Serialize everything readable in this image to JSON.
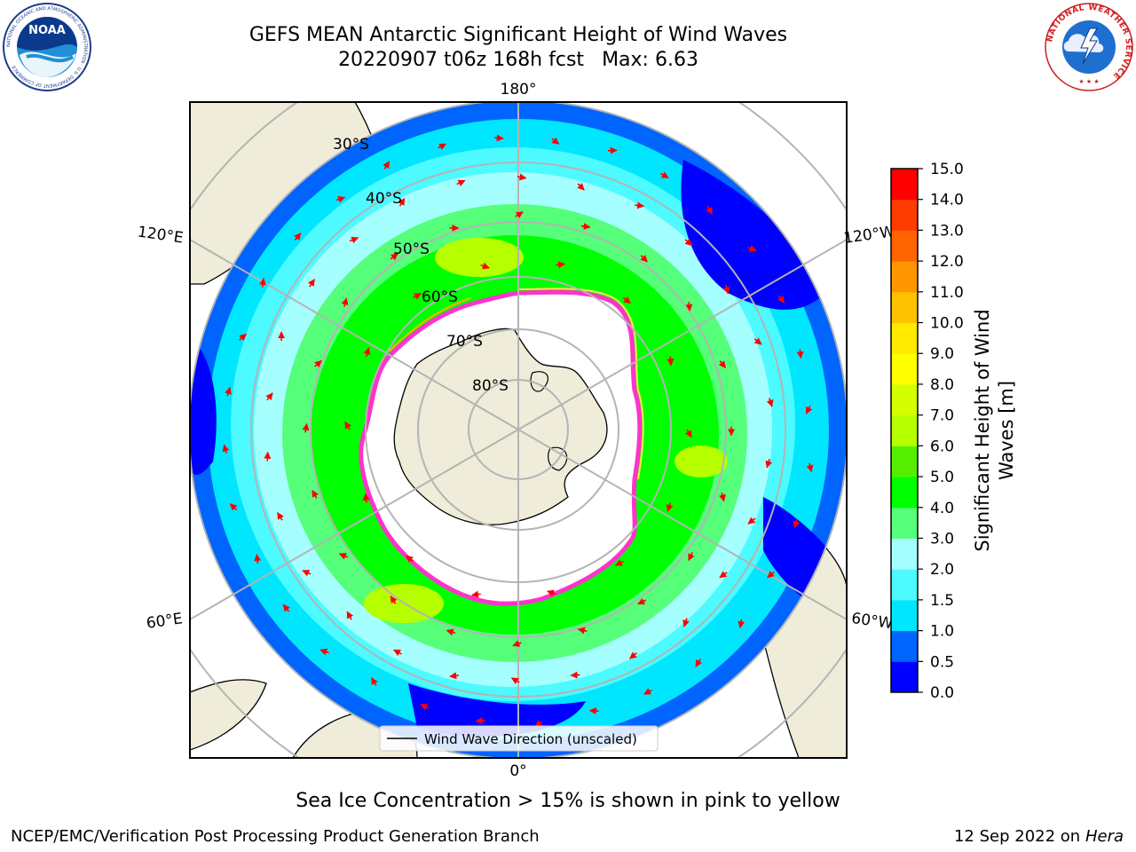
{
  "header": {
    "title_line1": "GEFS MEAN Antarctic Significant Height of Wind Waves",
    "run": "20220907 t06z 168h fcst",
    "max_label": "Max: 6.63"
  },
  "logos": {
    "left": {
      "icon": "noaa-logo-icon",
      "text": "NOAA",
      "ring_text": "NATIONAL OCEANIC AND ATMOSPHERIC ADMINISTRATION · U.S. DEPARTMENT OF COMMERCE"
    },
    "right": {
      "icon": "nws-logo-icon",
      "ring_text": "NATIONAL WEATHER SERVICE"
    }
  },
  "map": {
    "projection": "south-polar-stereographic",
    "longitude_labels": [
      "180°",
      "120°E",
      "120°W",
      "60°E",
      "60°W",
      "0°"
    ],
    "latitude_labels": [
      "30°S",
      "40°S",
      "50°S",
      "60°S",
      "70°S",
      "80°S"
    ],
    "legend_label": "Wind Wave Direction (unscaled)",
    "arrow_color": "#ff0000",
    "land_color": "#efecd9",
    "ice_edge_colors": [
      "#ff33cc",
      "#ffb000",
      "#ffe24a"
    ]
  },
  "colorbar": {
    "label_line1": "Significant Height of Wind",
    "label_line2": "Waves [m]",
    "ticks": [
      "0.0",
      "0.5",
      "1.0",
      "1.5",
      "2.0",
      "3.0",
      "4.0",
      "5.0",
      "6.0",
      "7.0",
      "8.0",
      "9.0",
      "10.0",
      "11.0",
      "12.0",
      "13.0",
      "14.0",
      "15.0"
    ],
    "colors": [
      "#0000ff",
      "#0064ff",
      "#00e6ff",
      "#4dfaff",
      "#a6ffff",
      "#55ff7a",
      "#00ff00",
      "#55ee00",
      "#b6ff00",
      "#d4ff00",
      "#ffff00",
      "#ffea00",
      "#ffc200",
      "#ff9600",
      "#ff6400",
      "#ff3c00",
      "#ff0000"
    ]
  },
  "caption": "Sea Ice Concentration > 15% is shown in pink to yellow",
  "footer": {
    "left": "NCEP/EMC/Verification Post Processing Product Generation Branch",
    "date": "12 Sep 2022 on",
    "machine": "Hera"
  }
}
